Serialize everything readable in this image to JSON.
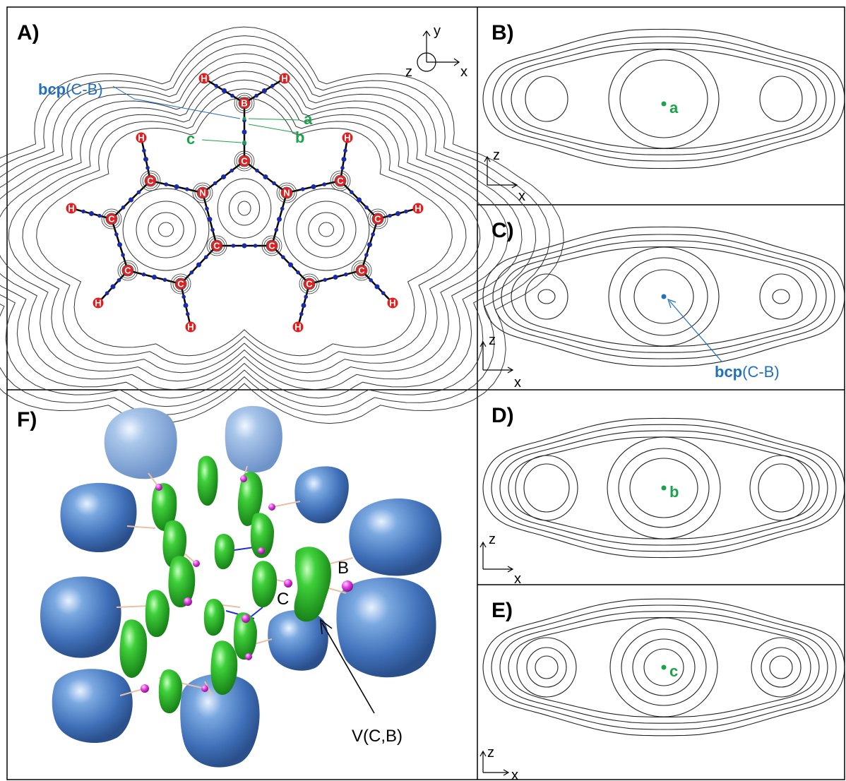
{
  "panels": {
    "A": "A)",
    "B": "B)",
    "C": "C)",
    "D": "D)",
    "E": "E)",
    "F": "F)"
  },
  "annotations": {
    "bcp_bold": "bcp",
    "bcp_rest": "(C-B)",
    "point_a": "a",
    "point_b": "b",
    "point_c": "c",
    "f_atom_b": "B",
    "f_atom_c": "C",
    "f_basin": "V(C,B)"
  },
  "axes": {
    "x": "x",
    "y": "y",
    "z": "z"
  },
  "atoms": {
    "H": "H",
    "B": "B",
    "C": "C",
    "N": "N"
  },
  "colors": {
    "atom_red": "#e02020",
    "bond_black": "#000000",
    "bcp_blue": "#1a2aa8",
    "label_green": "#1aa34a",
    "label_blue": "#1f6fc2",
    "basin_blue": "#4a7fc4",
    "basin_green": "#2fbf2f",
    "attractor_magenta": "#d020d0"
  },
  "icons": {
    "axis_triad": "xyz-axes-icon",
    "atom_marker": "atom-circle-icon"
  }
}
